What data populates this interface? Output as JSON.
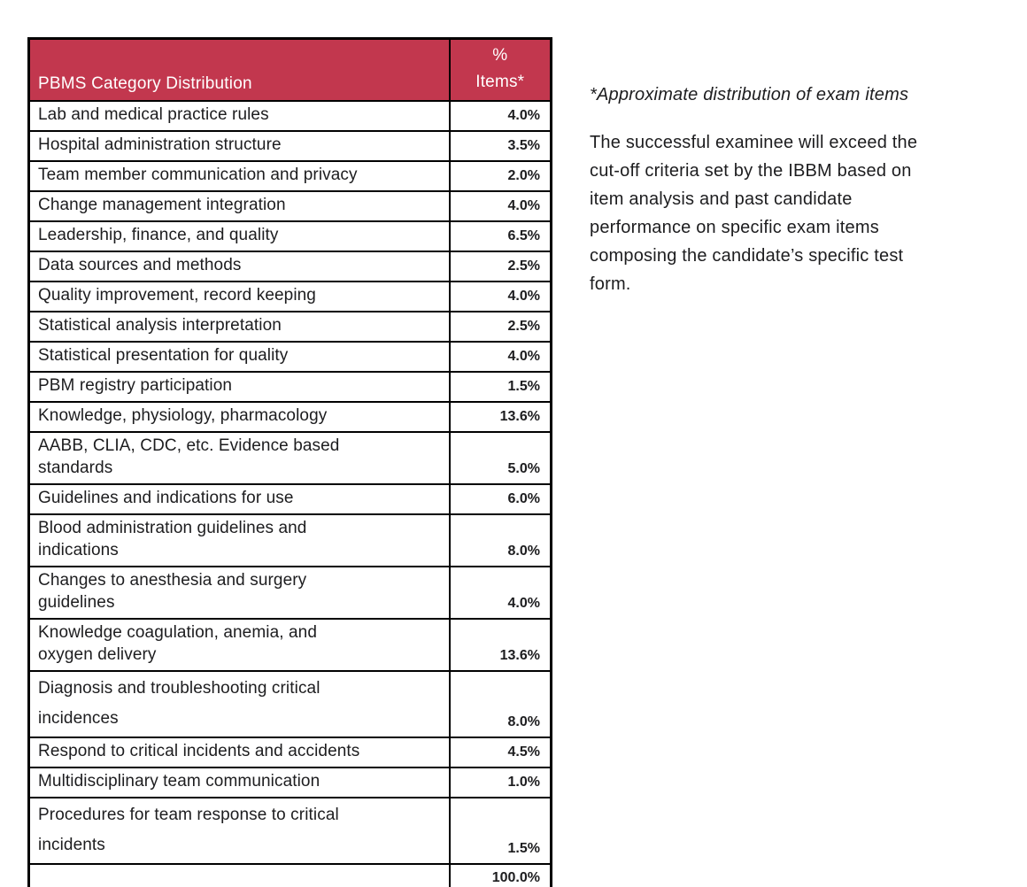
{
  "colors": {
    "header_bg": "#C2374E",
    "header_text": "#FFFFFF",
    "border": "#000000",
    "text": "#1D1D1F",
    "page_bg": "#FFFFFF"
  },
  "table": {
    "header": {
      "category": "PBMS Category Distribution",
      "percent": "%\nItems*"
    },
    "rows": [
      {
        "category": "Lab and medical practice rules",
        "value": "4.0%"
      },
      {
        "category": "Hospital administration structure",
        "value": "3.5%"
      },
      {
        "category": "Team member communication and privacy",
        "value": "2.0%"
      },
      {
        "category": "Change management integration",
        "value": "4.0%"
      },
      {
        "category": "Leadership, finance, and quality",
        "value": "6.5%"
      },
      {
        "category": "Data sources and methods",
        "value": "2.5%"
      },
      {
        "category": "Quality improvement, record keeping",
        "value": "4.0%"
      },
      {
        "category": "Statistical analysis interpretation",
        "value": "2.5%"
      },
      {
        "category": "Statistical presentation for quality",
        "value": "4.0%"
      },
      {
        "category": "PBM registry participation",
        "value": "1.5%"
      },
      {
        "category": "Knowledge, physiology, pharmacology",
        "value": "13.6%"
      },
      {
        "category": "AABB, CLIA, CDC, etc. Evidence based\nstandards",
        "value": "5.0%"
      },
      {
        "category": "Guidelines and indications for use",
        "value": "6.0%"
      },
      {
        "category": "Blood administration guidelines and\nindications",
        "value": "8.0%"
      },
      {
        "category": "Changes to anesthesia and surgery\nguidelines",
        "value": "4.0%"
      },
      {
        "category": "Knowledge coagulation, anemia, and\noxygen delivery",
        "value": "13.6%"
      },
      {
        "category": "Diagnosis and troubleshooting critical\nincidences",
        "value": "8.0%"
      },
      {
        "category": "Respond to critical incidents and accidents",
        "value": "4.5%"
      },
      {
        "category": "Multidisciplinary team communication",
        "value": "1.0%"
      },
      {
        "category": "Procedures for team response to critical\nincidents",
        "value": "1.5%"
      },
      {
        "category": "",
        "value": "100.0%"
      }
    ]
  },
  "notes": {
    "footnote": "*Approximate distribution of exam items",
    "paragraph": "The successful examinee will exceed the\ncut-off criteria set by the IBBM based on\nitem analysis and past candidate\nperformance on specific exam items\ncomposing the candidate’s specific test\nform."
  }
}
